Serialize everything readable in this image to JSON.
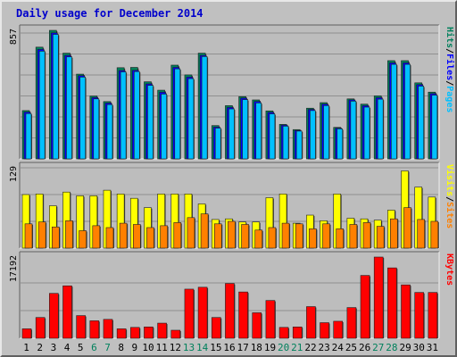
{
  "title": "Daily usage for December 2014",
  "colors": {
    "background": "#c0c0c0",
    "plot": "#bdbdbd",
    "hits": "#00805c",
    "files": "#0000ff",
    "pages": "#00c0ff",
    "visits": "#ffff00",
    "sites": "#ff8000",
    "kbytes": "#ff0000",
    "weekend_label": "#00805c",
    "weekday_label": "#000000"
  },
  "legends": {
    "top": [
      {
        "text": "Pages",
        "color": "#00c0ff"
      },
      {
        "text": "/",
        "color": "#000000"
      },
      {
        "text": "Files",
        "color": "#0000ff"
      },
      {
        "text": "/",
        "color": "#000000"
      },
      {
        "text": "Hits",
        "color": "#00805c"
      }
    ],
    "middle": [
      {
        "text": "Sites",
        "color": "#ff8000"
      },
      {
        "text": "/",
        "color": "#000000"
      },
      {
        "text": "Visits",
        "color": "#ffff00"
      }
    ],
    "bottom": [
      {
        "text": "KBytes",
        "color": "#ff0000"
      }
    ]
  },
  "chart_data": [
    {
      "type": "bar",
      "panel": "hits-files-pages",
      "categories": [
        "1",
        "2",
        "3",
        "4",
        "5",
        "6",
        "7",
        "8",
        "9",
        "10",
        "11",
        "12",
        "13",
        "14",
        "15",
        "16",
        "17",
        "18",
        "19",
        "20",
        "21",
        "22",
        "23",
        "24",
        "25",
        "26",
        "27",
        "28",
        "29",
        "30",
        "31"
      ],
      "weekend_days": [
        "6",
        "7",
        "13",
        "14",
        "20",
        "21",
        "27",
        "28"
      ],
      "ymax_label": "857",
      "ylim": [
        0,
        857
      ],
      "series": [
        {
          "name": "Hits",
          "values": [
            322,
            745,
            857,
            705,
            565,
            419,
            382,
            608,
            610,
            514,
            458,
            625,
            560,
            705,
            222,
            355,
            415,
            393,
            320,
            230,
            195,
            338,
            375,
            210,
            400,
            365,
            420,
            655,
            655,
            507,
            445
          ]
        },
        {
          "name": "Files",
          "values": [
            312,
            730,
            840,
            690,
            555,
            409,
            372,
            589,
            590,
            500,
            444,
            610,
            545,
            690,
            212,
            343,
            405,
            383,
            310,
            225,
            190,
            330,
            365,
            205,
            393,
            355,
            408,
            640,
            640,
            495,
            435
          ]
        },
        {
          "name": "Pages",
          "values": [
            302,
            718,
            830,
            680,
            545,
            400,
            362,
            580,
            582,
            490,
            432,
            600,
            535,
            682,
            205,
            333,
            395,
            373,
            300,
            218,
            185,
            322,
            355,
            200,
            385,
            345,
            398,
            630,
            630,
            485,
            425
          ]
        }
      ]
    },
    {
      "type": "bar",
      "panel": "sites-visits",
      "categories": [
        "1",
        "2",
        "3",
        "4",
        "5",
        "6",
        "7",
        "8",
        "9",
        "10",
        "11",
        "12",
        "13",
        "14",
        "15",
        "16",
        "17",
        "18",
        "19",
        "20",
        "21",
        "22",
        "23",
        "24",
        "25",
        "26",
        "27",
        "28",
        "29",
        "30",
        "31"
      ],
      "ymax_label": "129",
      "ylim": [
        0,
        129
      ],
      "series": [
        {
          "name": "Visits",
          "values": [
            86,
            87,
            68,
            90,
            84,
            84,
            93,
            87,
            80,
            65,
            87,
            87,
            87,
            71,
            46,
            47,
            42,
            42,
            81,
            87,
            40,
            53,
            44,
            87,
            48,
            47,
            45,
            61,
            124,
            98,
            82
          ]
        },
        {
          "name": "Sites",
          "values": [
            39,
            42,
            34,
            44,
            28,
            36,
            33,
            40,
            38,
            33,
            36,
            41,
            49,
            55,
            39,
            43,
            38,
            29,
            33,
            40,
            39,
            31,
            39,
            31,
            38,
            41,
            35,
            47,
            65,
            46,
            43
          ]
        }
      ]
    },
    {
      "type": "bar",
      "panel": "kbytes",
      "categories": [
        "1",
        "2",
        "3",
        "4",
        "5",
        "6",
        "7",
        "8",
        "9",
        "10",
        "11",
        "12",
        "13",
        "14",
        "15",
        "16",
        "17",
        "18",
        "19",
        "20",
        "21",
        "22",
        "23",
        "24",
        "25",
        "26",
        "27",
        "28",
        "29",
        "30",
        "31"
      ],
      "ymax_label": "17192",
      "ylim": [
        0,
        17192
      ],
      "series": [
        {
          "name": "KBytes",
          "values": [
            2000,
            4400,
            9500,
            11100,
            4800,
            3700,
            4000,
            2000,
            2300,
            2400,
            3200,
            1700,
            10400,
            10800,
            4400,
            11600,
            9800,
            5400,
            8000,
            2300,
            2400,
            6700,
            3300,
            3600,
            6500,
            13300,
            17192,
            14900,
            11300,
            9700,
            9700
          ]
        }
      ]
    }
  ]
}
